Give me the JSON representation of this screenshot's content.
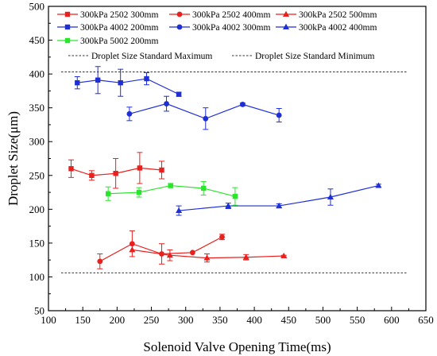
{
  "chart_data": {
    "type": "scatter",
    "title": "",
    "xlabel": "Solenoid Valve Opening Time(ms)",
    "ylabel": "Droplet Size(μm)",
    "xlim": [
      100,
      650
    ],
    "ylim": [
      50,
      500
    ],
    "x_ticks": [
      100,
      150,
      200,
      250,
      300,
      350,
      400,
      450,
      500,
      550,
      600,
      650
    ],
    "y_ticks": [
      50,
      100,
      150,
      200,
      250,
      300,
      350,
      400,
      450,
      500
    ],
    "grid": false,
    "legend_position": "top-left",
    "series": [
      {
        "name": "300kPa 2502 300mm",
        "color": "#e8201e",
        "marker": "square",
        "x": [
          133,
          163,
          198,
          233,
          265
        ],
        "y": [
          260,
          250,
          253,
          261,
          258
        ],
        "err": [
          13,
          7,
          22,
          23,
          13
        ]
      },
      {
        "name": "300kPa 2502 400mm",
        "color": "#e8201e",
        "marker": "circle",
        "x": [
          175,
          222,
          265,
          310,
          353
        ],
        "y": [
          123,
          149,
          134,
          136,
          159
        ],
        "err": [
          11,
          19,
          15,
          0,
          4
        ]
      },
      {
        "name": "300kPa 2502 500mm",
        "color": "#e8201e",
        "marker": "triangle",
        "x": [
          222,
          277,
          331,
          388,
          443
        ],
        "y": [
          140,
          132,
          128,
          129,
          131
        ],
        "err": [
          0,
          8,
          6,
          4,
          1
        ]
      },
      {
        "name": "300kPa 4002 200mm",
        "color": "#1f2fd6",
        "marker": "square",
        "x": [
          142,
          172,
          205,
          243,
          290
        ],
        "y": [
          387,
          391,
          387,
          393,
          370
        ],
        "err": [
          9,
          20,
          20,
          9,
          3
        ]
      },
      {
        "name": "300kPa 4002 300mm",
        "color": "#1f2fd6",
        "marker": "circle",
        "x": [
          218,
          272,
          329,
          383,
          436
        ],
        "y": [
          341,
          356,
          334,
          355,
          339
        ],
        "err": [
          10,
          11,
          16,
          2,
          10
        ]
      },
      {
        "name": "300kPa 4002 400mm",
        "color": "#1f2fd6",
        "marker": "triangle",
        "x": [
          290,
          362,
          436,
          511,
          581
        ],
        "y": [
          198,
          205,
          205,
          218,
          235
        ],
        "err": [
          7,
          4,
          3,
          12,
          2
        ]
      },
      {
        "name": "300kPa 5002 200mm",
        "color": "#28e62a",
        "marker": "square",
        "x": [
          187,
          232,
          278,
          326,
          372
        ],
        "y": [
          223,
          225,
          235,
          231,
          219
        ],
        "err": [
          10,
          7,
          3,
          10,
          13
        ]
      }
    ],
    "reference_lines": [
      {
        "name": "Droplet Size Standard Maximum",
        "y": 403
      },
      {
        "name": "Droplet Size Standard Minimum",
        "y": 106
      }
    ]
  }
}
